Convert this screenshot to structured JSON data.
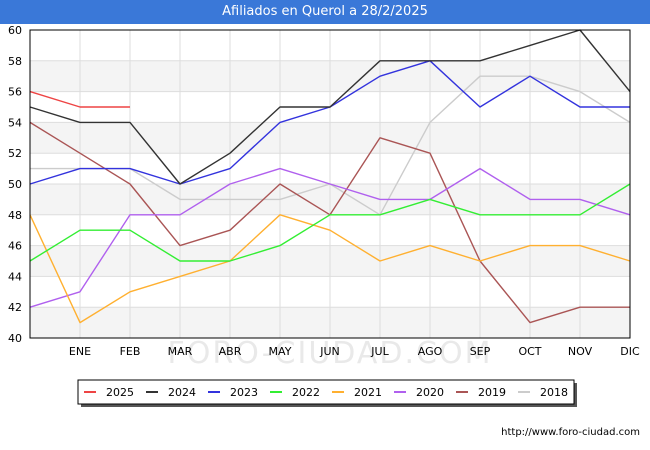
{
  "header": {
    "title": "Afiliados en Querol a 28/2/2025"
  },
  "footer": {
    "url": "http://www.foro-ciudad.com"
  },
  "watermark": "FORO-CIUDAD.COM",
  "chart_data": {
    "type": "line",
    "title": "Afiliados en Querol a 28/2/2025",
    "xlabel": "",
    "ylabel": "",
    "x": [
      "",
      "ENE",
      "FEB",
      "MAR",
      "ABR",
      "MAY",
      "JUN",
      "JUL",
      "AGO",
      "SEP",
      "OCT",
      "NOV",
      "DIC"
    ],
    "yticks": [
      40,
      42,
      44,
      46,
      48,
      50,
      52,
      54,
      56,
      58,
      60
    ],
    "ylim": [
      40,
      60
    ],
    "grid": true,
    "legend_position": "bottom",
    "series": [
      {
        "name": "2025",
        "color": "#ee4444",
        "values": [
          56,
          55,
          55,
          null,
          null,
          null,
          null,
          null,
          null,
          null,
          null,
          null,
          null
        ]
      },
      {
        "name": "2024",
        "color": "#333333",
        "values": [
          55,
          54,
          54,
          50,
          52,
          55,
          55,
          58,
          58,
          58,
          59,
          60,
          56
        ]
      },
      {
        "name": "2023",
        "color": "#3333dd",
        "values": [
          50,
          51,
          51,
          50,
          51,
          54,
          55,
          57,
          58,
          55,
          57,
          55,
          55
        ]
      },
      {
        "name": "2022",
        "color": "#33ee33",
        "values": [
          45,
          47,
          47,
          45,
          45,
          46,
          48,
          48,
          49,
          48,
          48,
          48,
          50
        ]
      },
      {
        "name": "2021",
        "color": "#ffb030",
        "values": [
          48,
          41,
          43,
          44,
          45,
          48,
          47,
          45,
          46,
          45,
          46,
          46,
          45
        ]
      },
      {
        "name": "2020",
        "color": "#b060ee",
        "values": [
          42,
          43,
          48,
          48,
          50,
          51,
          50,
          49,
          49,
          51,
          49,
          49,
          48
        ]
      },
      {
        "name": "2019",
        "color": "#aa5555",
        "values": [
          54,
          52,
          50,
          46,
          47,
          50,
          48,
          53,
          52,
          45,
          41,
          42,
          42
        ]
      },
      {
        "name": "2018",
        "color": "#cccccc",
        "values": [
          51,
          51,
          51,
          49,
          49,
          49,
          50,
          48,
          54,
          57,
          57,
          56,
          54
        ]
      }
    ]
  }
}
